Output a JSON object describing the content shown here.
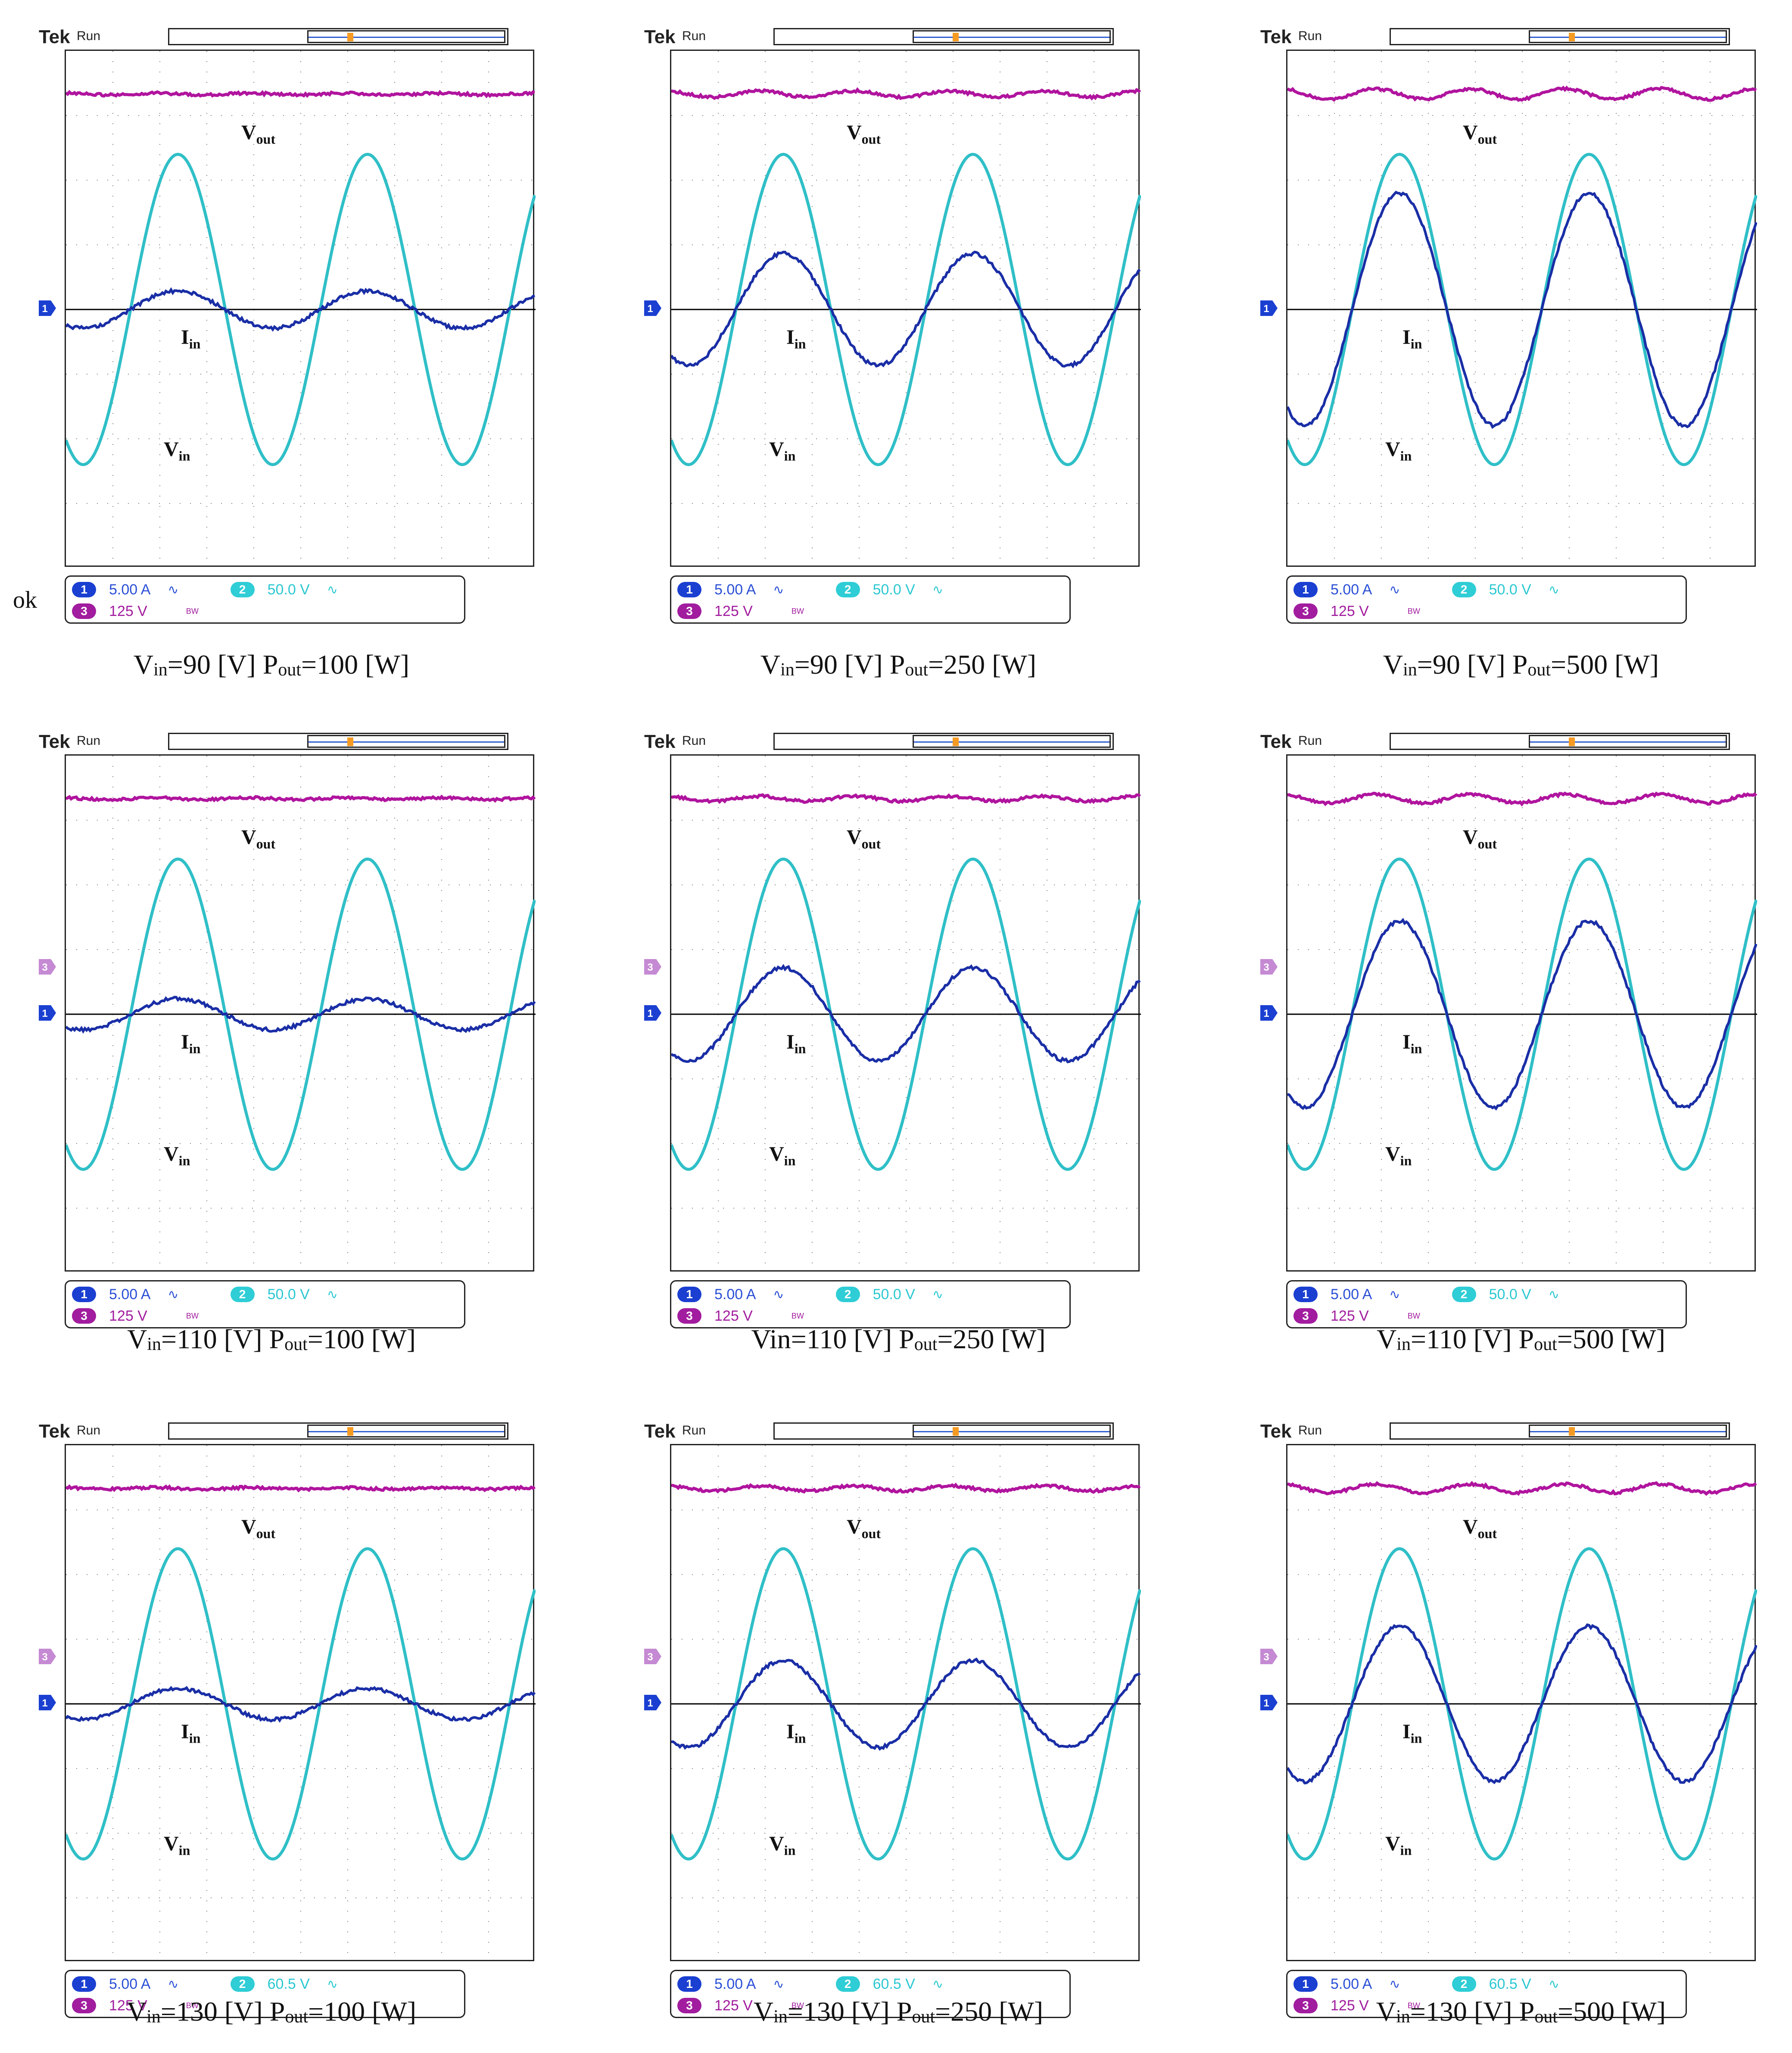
{
  "header": {
    "brand": "Tek",
    "state": "Run"
  },
  "status": {
    "ch1": {
      "num": "1",
      "value": "5.00 A"
    },
    "ch3": {
      "num": "3",
      "value": "125 V"
    },
    "ch2_num": "2"
  },
  "labels": {
    "vout": "V",
    "vout_sub": "out",
    "iin": "I",
    "iin_sub": "in",
    "vin": "V",
    "vin_sub": "in"
  },
  "stray_text": "ok",
  "colors": {
    "vout": "#b0149e",
    "vin": "#2fbfc7",
    "iin": "#1a2ea6",
    "grid": "#888888"
  },
  "panels": [
    {
      "ch2": "50.0 V",
      "caption": {
        "a": "V",
        "as": "in",
        "b": "=90 [V] P",
        "bs": "out",
        "c": "=100 [W]"
      },
      "iin_amp": 0.12,
      "vout_ripple": 0.005
    },
    {
      "ch2": "50.0 V",
      "caption": {
        "a": "V",
        "as": "in",
        "b": "=90 [V] P",
        "bs": "out",
        "c": "=250 [W]"
      },
      "iin_amp": 0.36,
      "vout_ripple": 0.018
    },
    {
      "ch2": "50.0 V",
      "caption": {
        "a": "V",
        "as": "in",
        "b": "=90 [V] P",
        "bs": "out",
        "c": "=500 [W]"
      },
      "iin_amp": 0.75,
      "vout_ripple": 0.03
    },
    {
      "ch2": "50.0 V",
      "caption": {
        "a": "V",
        "as": "in",
        "b": "=110 [V] P",
        "bs": "out",
        "c": "=100 [W]"
      },
      "iin_amp": 0.1,
      "vout_ripple": 0.005
    },
    {
      "ch2": "50.0 V",
      "caption": {
        "a": "Vin",
        "as": "",
        "b": "=110 [V] P",
        "bs": "out",
        "c": "=250 [W]"
      },
      "iin_amp": 0.3,
      "vout_ripple": 0.015
    },
    {
      "ch2": "50.0 V",
      "caption": {
        "a": "V",
        "as": "in",
        "b": "=110 [V] P",
        "bs": "out",
        "c": "=500 [W]"
      },
      "iin_amp": 0.6,
      "vout_ripple": 0.025
    },
    {
      "ch2": "60.5 V",
      "caption": {
        "a": "V",
        "as": "in",
        "b": "=130 [V] P",
        "bs": "out",
        "c": "=100 [W]"
      },
      "iin_amp": 0.1,
      "vout_ripple": 0.005
    },
    {
      "ch2": "60.5 V",
      "caption": {
        "a": "V",
        "as": "in",
        "b": "=130 [V] P",
        "bs": "out",
        "c": "=250 [W]"
      },
      "iin_amp": 0.28,
      "vout_ripple": 0.015
    },
    {
      "ch2": "60.5 V",
      "caption": {
        "a": "V",
        "as": "in",
        "b": "=130 [V] P",
        "bs": "out",
        "c": "=500 [W]"
      },
      "iin_amp": 0.5,
      "vout_ripple": 0.025
    }
  ]
}
